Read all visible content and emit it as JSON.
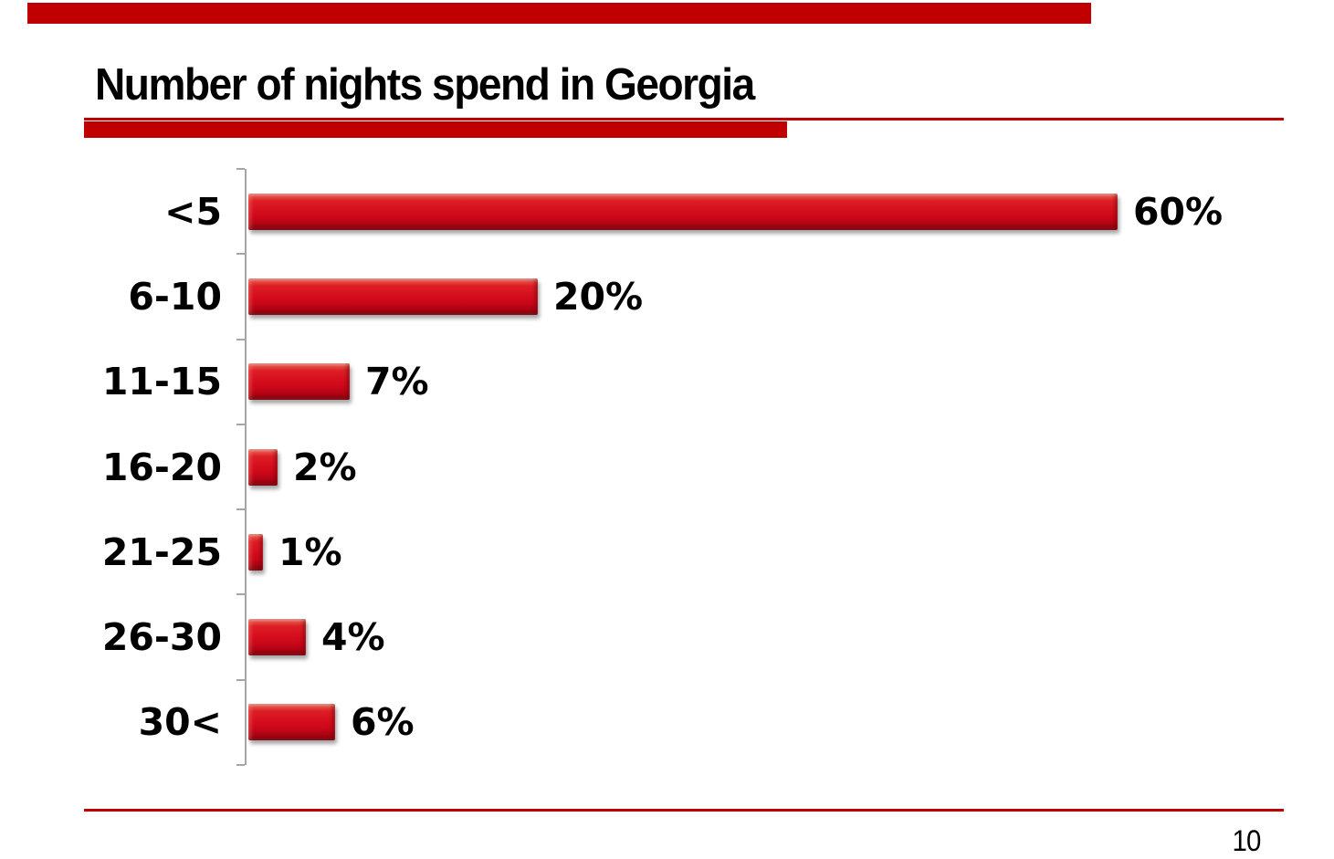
{
  "slide": {
    "title": "Number of nights spend in Georgia",
    "page_number": "10"
  },
  "colors": {
    "accent_red": "#C00000",
    "bar_red": "#D60E1E",
    "bar_red_highlight": "#F28A7E",
    "bar_red_dark": "#6E0008",
    "axis_gray": "#A6A6A6",
    "text": "#000000",
    "background": "#FFFFFF"
  },
  "chart_data": {
    "type": "bar",
    "orientation": "horizontal",
    "title": "Number of nights spend in Georgia",
    "categories": [
      "<5",
      "6-10",
      "11-15",
      "16-20",
      "21-25",
      "26-30",
      "30<"
    ],
    "values": [
      60,
      20,
      7,
      2,
      1,
      4,
      6
    ],
    "value_labels": [
      "60%",
      "20%",
      "7%",
      "2%",
      "1%",
      "4%",
      "6%"
    ],
    "unit": "%",
    "xlabel": "",
    "ylabel": "",
    "xlim": [
      0,
      60
    ],
    "grid": false,
    "legend": "none",
    "value_label_position": "end-of-bar"
  }
}
